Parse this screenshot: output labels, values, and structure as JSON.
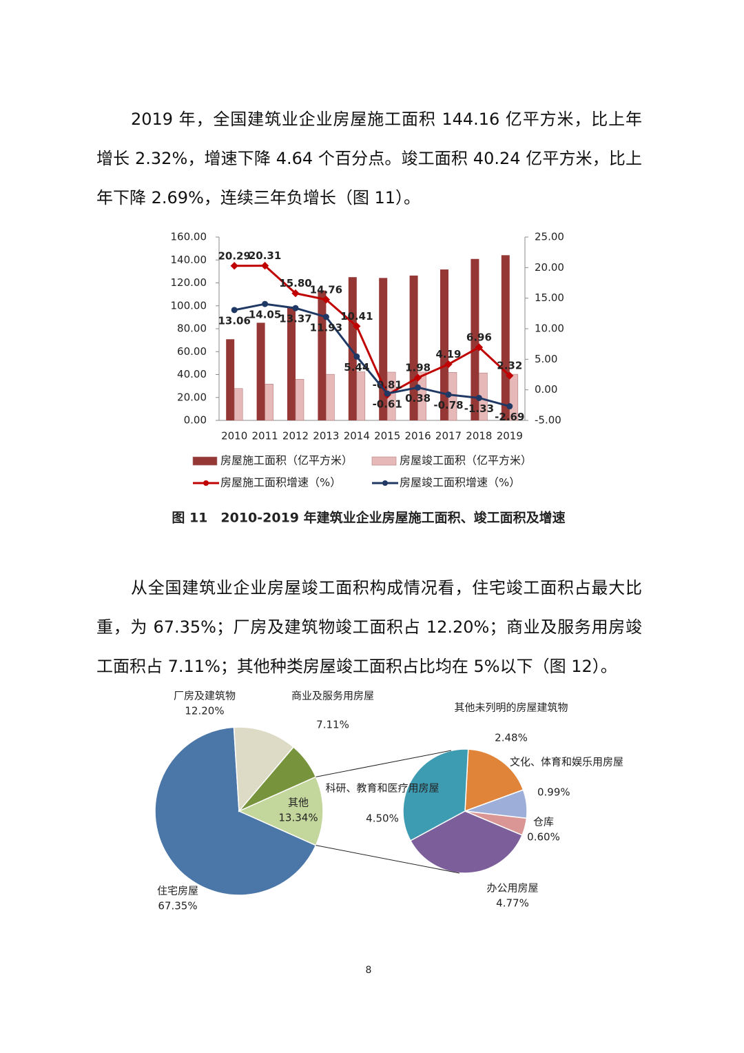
{
  "paragraphs": [
    "2019 年，全国建筑业企业房屋施工面积 144.16 亿平方米，比上年增长 2.32%，增速下降 4.64 个百分点。竣工面积 40.24 亿平方米，比上年下降 2.69%，连续三年负增长（图 11）。",
    "从全国建筑业企业房屋竣工面积构成情况看，住宅竣工面积占最大比重，为 67.35%；厂房及建筑物竣工面积占 12.20%；商业及服务用房竣工面积占 7.11%；其他种类房屋竣工面积占比均在 5%以下（图 12）。"
  ],
  "caption": "图 11　2010-2019 年建筑业企业房屋施工面积、竣工面积及增速",
  "page_number": "8",
  "chart_data": [
    {
      "type": "bar",
      "categories": [
        "2010",
        "2011",
        "2012",
        "2013",
        "2014",
        "2015",
        "2016",
        "2017",
        "2018",
        "2019"
      ],
      "ylim": [
        0,
        160
      ],
      "yticks": [
        {
          "value": 0,
          "label": "0.00"
        },
        {
          "value": 20,
          "label": "20.00"
        },
        {
          "value": 40,
          "label": "40.00"
        },
        {
          "value": 60,
          "label": "60.00"
        },
        {
          "value": 80,
          "label": "80.00"
        },
        {
          "value": 100,
          "label": "100.00"
        },
        {
          "value": 120,
          "label": "120.00"
        },
        {
          "value": 140,
          "label": "140.00"
        },
        {
          "value": 160,
          "label": "160.00"
        }
      ],
      "y2lim": [
        -5,
        25
      ],
      "y2ticks": [
        {
          "value": -5,
          "label": "-5.00"
        },
        {
          "value": 0,
          "label": "0.00"
        },
        {
          "value": 5,
          "label": "5.00"
        },
        {
          "value": 10,
          "label": "10.00"
        },
        {
          "value": 15,
          "label": "15.00"
        },
        {
          "value": 20,
          "label": "20.00"
        },
        {
          "value": 25,
          "label": "25.00"
        }
      ],
      "series": [
        {
          "name": "房屋施工面积（亿平方米）",
          "type": "bar",
          "color": "#953735",
          "values": [
            70.8,
            85.2,
            98.6,
            113.3,
            125.0,
            124.3,
            126.4,
            131.7,
            140.9,
            144.16
          ]
        },
        {
          "name": "房屋竣工面积（亿平方米）",
          "type": "bar",
          "color": "#e6b9b8",
          "values": [
            27.8,
            31.7,
            35.9,
            40.2,
            42.4,
            42.1,
            42.2,
            41.9,
            41.4,
            40.24
          ]
        },
        {
          "name": "房屋施工面积增速（%）",
          "type": "line",
          "axis": "y2",
          "color": "#c00000",
          "values": [
            20.29,
            20.31,
            15.8,
            14.76,
            10.41,
            -0.81,
            1.98,
            4.19,
            6.96,
            2.32
          ],
          "value_labels": [
            "20.29",
            "20.31",
            "15.80",
            "14.76",
            "10.41",
            "-0.81",
            "1.98",
            "4.19",
            "6.96",
            "2.32"
          ]
        },
        {
          "name": "房屋竣工面积增速（%）",
          "type": "line",
          "axis": "y2",
          "color": "#1f3864",
          "values": [
            13.06,
            14.05,
            13.37,
            11.93,
            5.44,
            -0.61,
            0.38,
            -0.78,
            -1.33,
            -2.69
          ],
          "value_labels": [
            "13.06",
            "14.05",
            "13.37",
            "11.93",
            "5.44",
            "-0.61",
            "0.38",
            "-0.78",
            "-1.33",
            "-2.69"
          ]
        }
      ]
    },
    {
      "type": "pie",
      "categories": [
        "住宅房屋",
        "厂房及建筑物",
        "商业及服务用房屋",
        "其他"
      ],
      "values": [
        67.35,
        12.2,
        7.11,
        13.34
      ],
      "value_labels": [
        "67.35%",
        "12.20%",
        "7.11%",
        "13.34%"
      ],
      "colors": [
        "#4a76a8",
        "#dddac6",
        "#77933c",
        "#c3d69b"
      ],
      "breakout": {
        "categories": [
          "其他未列明的房屋建筑物",
          "文化、体育和娱乐用房屋",
          "仓库",
          "办公用房屋",
          "科研、教育和医疗用房屋"
        ],
        "values": [
          2.48,
          0.99,
          0.6,
          4.77,
          4.5
        ],
        "value_labels": [
          "2.48%",
          "0.99%",
          "0.60%",
          "4.77%",
          "4.50%"
        ],
        "colors": [
          "#e0843a",
          "#9dafd8",
          "#d99694",
          "#7b5e9a",
          "#3d9bb2"
        ]
      }
    }
  ]
}
